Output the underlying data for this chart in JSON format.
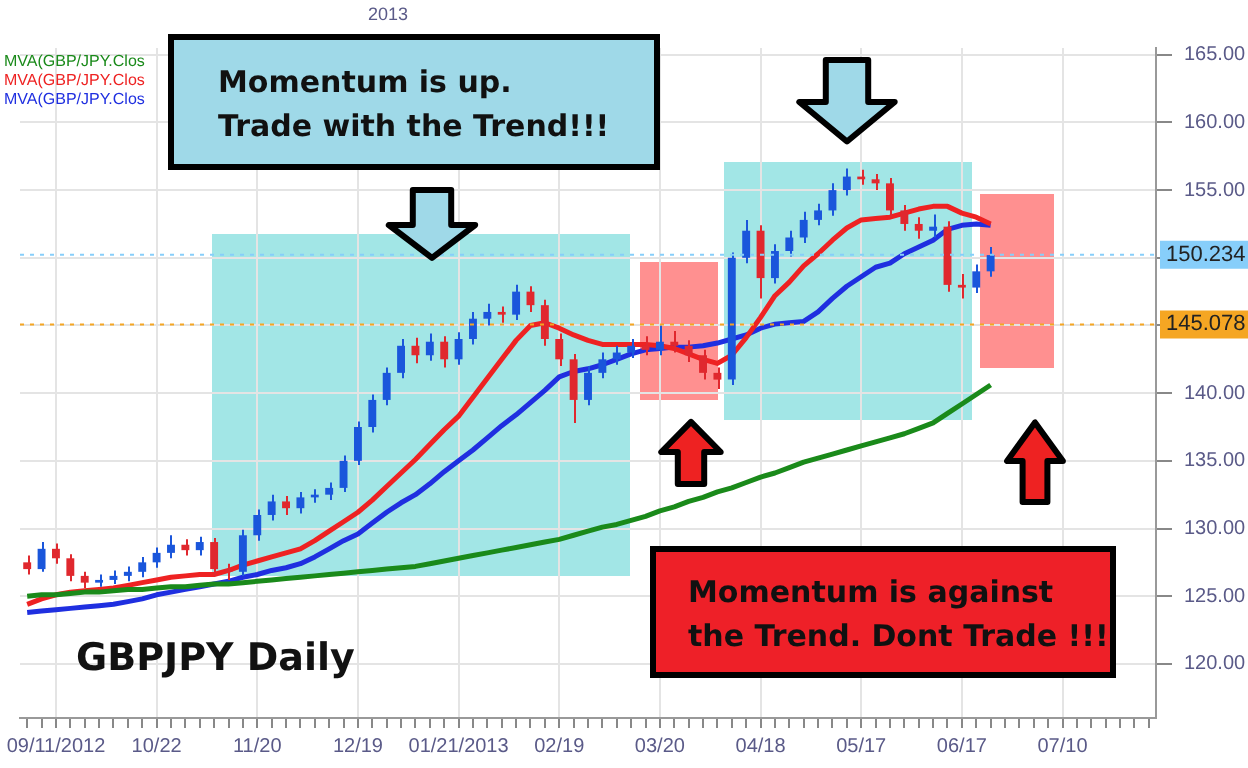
{
  "chart_data": {
    "type": "candlestick",
    "title": "GBPJPY Daily",
    "annotations": [
      "2013",
      "Momentum is up.\nTrade with the Trend!!!",
      "Momentum is against\nthe Trend. Dont Trade !!!"
    ],
    "categories": [
      null,
      null,
      "09/11/2012",
      null,
      null,
      null,
      null,
      null,
      null,
      "10/22",
      null,
      null,
      null,
      null,
      null,
      null,
      "11/20",
      null,
      null,
      null,
      null,
      null,
      null,
      "12/19",
      null,
      null,
      null,
      null,
      null,
      null,
      "01/21/2013",
      null,
      null,
      null,
      null,
      null,
      null,
      "02/19",
      null,
      null,
      null,
      null,
      null,
      null,
      "03/20",
      null,
      null,
      null,
      null,
      null,
      null,
      "04/18",
      null,
      null,
      null,
      null,
      null,
      null,
      "05/17",
      null,
      null,
      null,
      null,
      null,
      null,
      "06/17",
      null,
      null,
      null,
      null,
      null,
      null,
      "07/10",
      null,
      null,
      null,
      null,
      null,
      null
    ],
    "ohlc": [
      [
        127.5,
        128.0,
        126.6,
        127.0
      ],
      [
        127.0,
        129.0,
        126.8,
        128.5
      ],
      [
        128.5,
        128.9,
        127.4,
        127.8
      ],
      [
        127.8,
        128.1,
        126.1,
        126.5
      ],
      [
        126.5,
        126.8,
        125.6,
        126.0
      ],
      [
        126.0,
        126.6,
        125.7,
        126.2
      ],
      [
        126.2,
        126.9,
        125.9,
        126.5
      ],
      [
        126.5,
        127.2,
        126.1,
        126.8
      ],
      [
        126.8,
        127.9,
        126.4,
        127.5
      ],
      [
        127.5,
        128.6,
        127.1,
        128.2
      ],
      [
        128.2,
        129.5,
        127.8,
        128.8
      ],
      [
        128.8,
        129.2,
        128.0,
        128.4
      ],
      [
        128.4,
        129.4,
        128.0,
        129.0
      ],
      [
        129.0,
        129.3,
        126.5,
        127.0
      ],
      [
        127.0,
        127.4,
        126.2,
        126.8
      ],
      [
        126.8,
        129.9,
        126.5,
        129.5
      ],
      [
        129.5,
        131.4,
        129.1,
        131.0
      ],
      [
        131.0,
        132.5,
        130.6,
        132.0
      ],
      [
        132.0,
        132.4,
        131.0,
        131.5
      ],
      [
        131.5,
        132.7,
        131.1,
        132.3
      ],
      [
        132.3,
        132.9,
        131.9,
        132.5
      ],
      [
        132.5,
        133.4,
        132.1,
        133.0
      ],
      [
        133.0,
        135.4,
        132.7,
        135.0
      ],
      [
        135.0,
        137.9,
        134.7,
        137.5
      ],
      [
        137.5,
        139.9,
        137.1,
        139.5
      ],
      [
        139.5,
        141.9,
        139.1,
        141.5
      ],
      [
        141.5,
        144.0,
        141.1,
        143.5
      ],
      [
        143.5,
        144.1,
        142.2,
        142.8
      ],
      [
        142.8,
        144.4,
        142.4,
        143.8
      ],
      [
        143.8,
        144.2,
        141.9,
        142.5
      ],
      [
        142.5,
        144.5,
        142.1,
        144.0
      ],
      [
        144.0,
        146.0,
        143.6,
        145.5
      ],
      [
        145.5,
        146.6,
        145.0,
        146.0
      ],
      [
        146.0,
        146.4,
        145.2,
        145.8
      ],
      [
        145.8,
        148.0,
        145.4,
        147.5
      ],
      [
        147.5,
        147.9,
        146.0,
        146.5
      ],
      [
        146.5,
        146.9,
        143.5,
        144.0
      ],
      [
        144.0,
        144.4,
        142.0,
        142.5
      ],
      [
        142.5,
        142.9,
        137.8,
        139.5
      ],
      [
        139.5,
        142.0,
        139.1,
        141.5
      ],
      [
        141.5,
        143.0,
        141.1,
        142.5
      ],
      [
        142.5,
        143.5,
        142.1,
        143.0
      ],
      [
        143.0,
        144.0,
        142.6,
        143.5
      ],
      [
        143.5,
        144.2,
        142.8,
        143.2
      ],
      [
        143.2,
        145.0,
        142.8,
        143.8
      ],
      [
        143.8,
        144.6,
        143.0,
        143.5
      ],
      [
        143.5,
        143.9,
        142.3,
        142.8
      ],
      [
        142.8,
        143.2,
        141.0,
        141.5
      ],
      [
        141.5,
        141.9,
        140.3,
        141.0
      ],
      [
        141.0,
        150.4,
        140.6,
        150.0
      ],
      [
        150.0,
        152.8,
        149.6,
        152.0
      ],
      [
        152.0,
        152.4,
        147.0,
        148.5
      ],
      [
        148.5,
        151.0,
        148.1,
        150.5
      ],
      [
        150.5,
        152.0,
        150.1,
        151.5
      ],
      [
        151.5,
        153.4,
        151.1,
        152.8
      ],
      [
        152.8,
        154.0,
        152.4,
        153.5
      ],
      [
        153.5,
        155.5,
        153.1,
        155.0
      ],
      [
        155.0,
        156.6,
        154.6,
        156.0
      ],
      [
        156.0,
        156.5,
        155.4,
        155.8
      ],
      [
        155.8,
        156.2,
        155.0,
        155.5
      ],
      [
        155.5,
        155.9,
        153.0,
        153.5
      ],
      [
        153.5,
        153.9,
        152.0,
        152.5
      ],
      [
        152.5,
        153.0,
        151.4,
        152.0
      ],
      [
        152.0,
        153.2,
        151.5,
        152.3
      ],
      [
        152.3,
        152.7,
        147.5,
        148.0
      ],
      [
        148.0,
        148.8,
        147.0,
        147.8
      ],
      [
        147.8,
        149.5,
        147.4,
        149.0
      ],
      [
        149.0,
        150.8,
        148.6,
        150.2
      ],
      null,
      null,
      null,
      null,
      null,
      null,
      null,
      null,
      null,
      null,
      null
    ],
    "colors": [
      "#e0282e",
      "#1a56db",
      "#e0282e",
      "#e0282e",
      "#e0282e",
      "#1a56db",
      "#1a56db",
      "#1a56db",
      "#1a56db",
      "#1a56db",
      "#1a56db",
      "#e0282e",
      "#1a56db",
      "#e0282e",
      "#e0282e",
      "#1a56db",
      "#1a56db",
      "#1a56db",
      "#e0282e",
      "#1a56db",
      "#1a56db",
      "#1a56db",
      "#1a56db",
      "#1a56db",
      "#1a56db",
      "#1a56db",
      "#1a56db",
      "#e0282e",
      "#1a56db",
      "#e0282e",
      "#1a56db",
      "#1a56db",
      "#1a56db",
      "#e0282e",
      "#1a56db",
      "#e0282e",
      "#e0282e",
      "#e0282e",
      "#e0282e",
      "#1a56db",
      "#1a56db",
      "#1a56db",
      "#1a56db",
      "#e0282e",
      "#1a56db",
      "#e0282e",
      "#e0282e",
      "#e0282e",
      "#e0282e",
      "#1a56db",
      "#1a56db",
      "#e0282e",
      "#1a56db",
      "#1a56db",
      "#1a56db",
      "#1a56db",
      "#1a56db",
      "#1a56db",
      "#e0282e",
      "#e0282e",
      "#e0282e",
      "#e0282e",
      "#e0282e",
      "#1a56db",
      "#e0282e",
      "#e0282e",
      "#1a56db",
      "#1a56db",
      null,
      null,
      null,
      null,
      null,
      null,
      null,
      null,
      null,
      null,
      null
    ],
    "series": [
      {
        "type": "line",
        "name": "MVA(GBP/JPY.Clos",
        "color": "#1a8a1a",
        "values": [
          125.0,
          125.1,
          125.1,
          125.2,
          125.3,
          125.3,
          125.4,
          125.5,
          125.5,
          125.6,
          125.7,
          125.7,
          125.8,
          125.9,
          125.9,
          126.0,
          126.1,
          126.2,
          126.3,
          126.4,
          126.5,
          126.6,
          126.7,
          126.8,
          126.9,
          127.0,
          127.1,
          127.2,
          127.4,
          127.6,
          127.8,
          128.0,
          128.2,
          128.4,
          128.6,
          128.8,
          129.0,
          129.2,
          129.5,
          129.8,
          130.1,
          130.3,
          130.6,
          130.9,
          131.3,
          131.6,
          132.0,
          132.3,
          132.7,
          133.0,
          133.4,
          133.8,
          134.1,
          134.5,
          134.9,
          135.2,
          135.5,
          135.8,
          136.1,
          136.4,
          136.7,
          137.0,
          137.4,
          137.8,
          138.5,
          139.2,
          139.9,
          140.6,
          null,
          null,
          null,
          null,
          null,
          null,
          null,
          null,
          null,
          null,
          null
        ]
      },
      {
        "type": "line",
        "name": "MVA(GBP/JPY.Clos",
        "color": "#ee2222",
        "values": [
          124.4,
          124.8,
          125.1,
          125.3,
          125.4,
          125.5,
          125.6,
          125.8,
          126.0,
          126.2,
          126.4,
          126.5,
          126.6,
          126.6,
          126.9,
          127.3,
          127.6,
          127.9,
          128.2,
          128.5,
          129.1,
          129.8,
          130.5,
          131.2,
          132.1,
          133.1,
          134.1,
          135.1,
          136.2,
          137.3,
          138.3,
          139.7,
          141.1,
          142.5,
          143.9,
          145.0,
          145.2,
          144.8,
          144.3,
          143.9,
          143.6,
          143.6,
          143.6,
          143.6,
          143.5,
          143.3,
          142.9,
          142.5,
          142.2,
          142.8,
          144.1,
          145.6,
          147.2,
          148.2,
          149.4,
          150.3,
          151.3,
          152.2,
          152.8,
          152.9,
          153.0,
          153.3,
          153.6,
          153.8,
          153.8,
          153.3,
          153.0,
          152.5,
          null,
          null,
          null,
          null,
          null,
          null,
          null,
          null,
          null,
          null,
          null
        ]
      },
      {
        "type": "line",
        "name": "MVA(GBP/JPY.Clos",
        "color": "#1f2fe0",
        "values": [
          123.8,
          123.9,
          124.0,
          124.1,
          124.2,
          124.3,
          124.4,
          124.6,
          124.8,
          125.1,
          125.3,
          125.5,
          125.7,
          125.9,
          126.1,
          126.4,
          126.6,
          126.9,
          127.1,
          127.4,
          127.9,
          128.5,
          129.1,
          129.6,
          130.4,
          131.2,
          131.9,
          132.5,
          133.3,
          134.2,
          135.0,
          135.8,
          136.7,
          137.6,
          138.4,
          139.3,
          140.2,
          141.2,
          141.6,
          141.8,
          142.1,
          142.5,
          142.9,
          143.2,
          143.3,
          143.4,
          143.4,
          143.5,
          143.7,
          144.0,
          144.3,
          144.8,
          145.1,
          145.2,
          145.3,
          146.0,
          147.0,
          147.9,
          148.6,
          149.3,
          149.6,
          150.3,
          150.8,
          151.3,
          152.1,
          152.4,
          152.5,
          152.4,
          null,
          null,
          null,
          null,
          null,
          null,
          null,
          null,
          null,
          null,
          null
        ]
      }
    ],
    "ylim": [
      116,
      165.5
    ],
    "yticks": [
      {
        "value": 120,
        "label": "120.00"
      },
      {
        "value": 125,
        "label": "125.00"
      },
      {
        "value": 130,
        "label": "130.00"
      },
      {
        "value": 135,
        "label": "135.00"
      },
      {
        "value": 140,
        "label": "140.00"
      },
      {
        "value": 145,
        "label": null
      },
      {
        "value": 150,
        "label": null
      },
      {
        "value": 155,
        "label": "155.00"
      },
      {
        "value": 160,
        "label": "160.00"
      },
      {
        "value": 165,
        "label": "165.00"
      }
    ],
    "grid": true,
    "legend": "top left",
    "ref_lines": [
      {
        "axis": "y",
        "value": 150.234,
        "label": "150.234",
        "color": "#87cefa",
        "line_style": "dotted"
      },
      {
        "axis": "y",
        "value": 145.078,
        "label": "145.078",
        "color": "#f5a623",
        "line_style": "dotted"
      }
    ]
  }
}
